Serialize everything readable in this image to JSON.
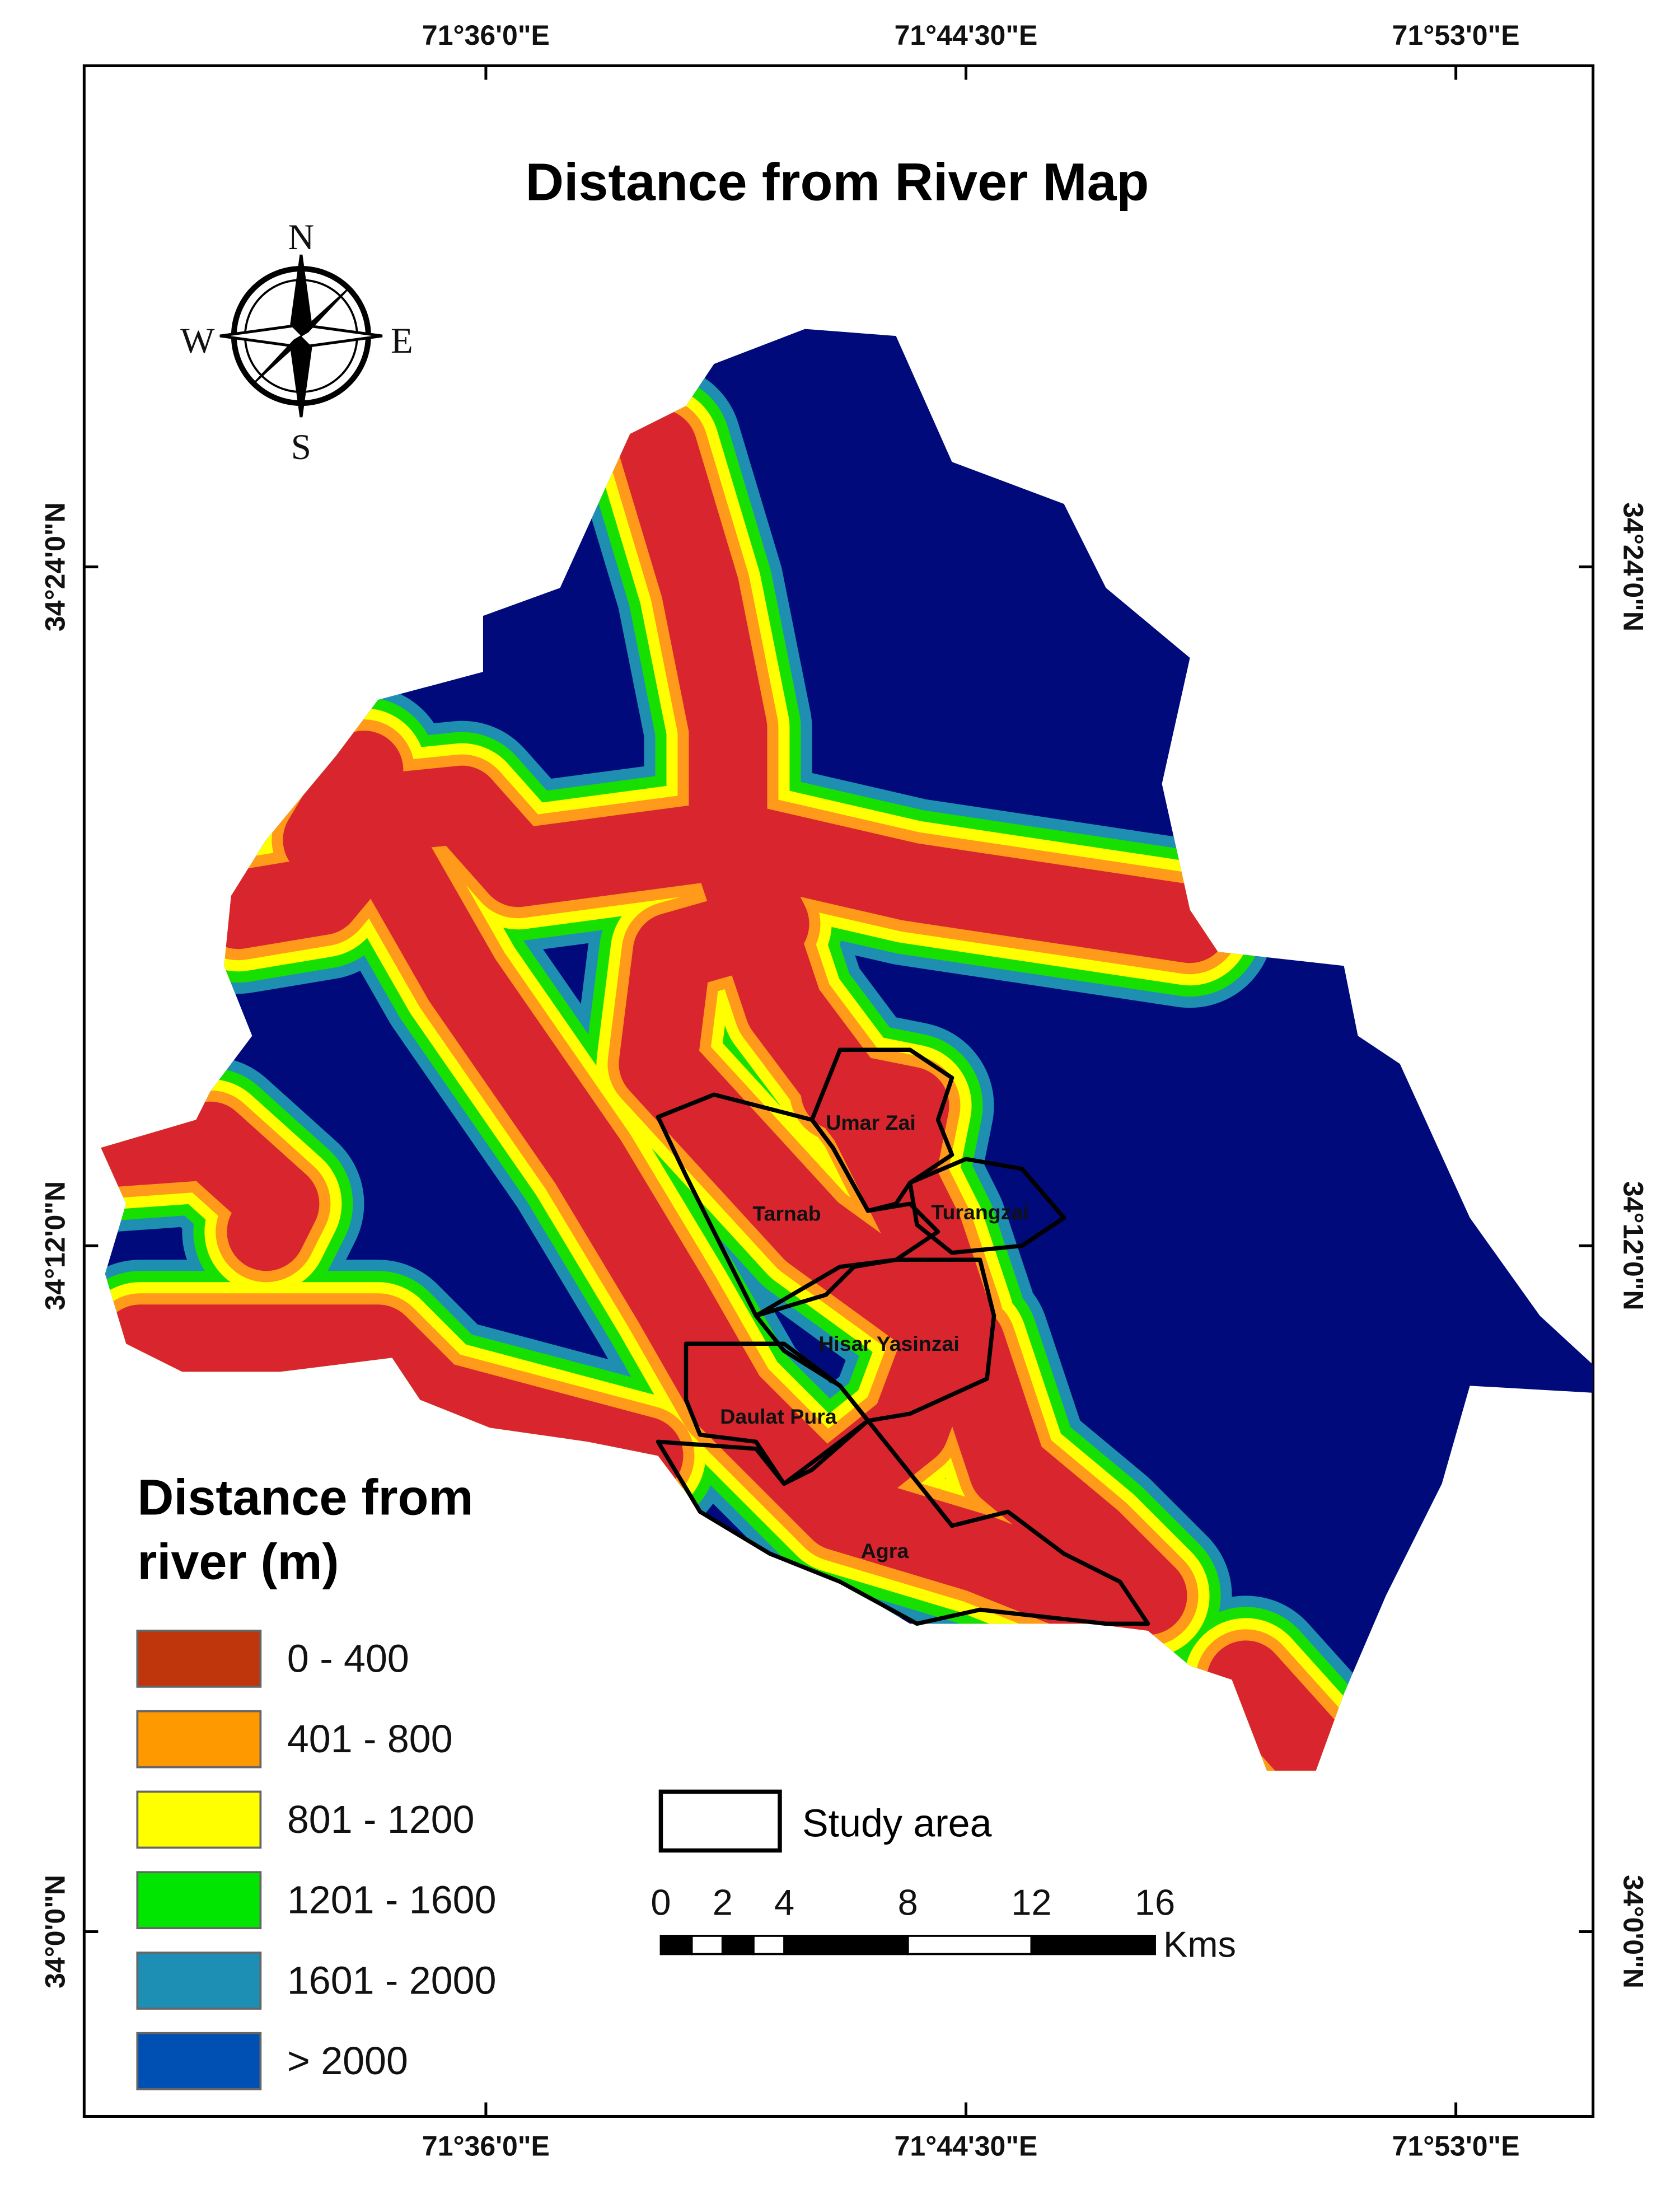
{
  "title": "Distance from River Map",
  "coordinates": {
    "top": [
      "71°36'0\"E",
      "71°44'30\"E",
      "71°53'0\"E"
    ],
    "bottom": [
      "71°36'0\"E",
      "71°44'30\"E",
      "71°53'0\"E"
    ],
    "left": [
      "34°24'0\"N",
      "34°12'0\"N",
      "34°0'0\"N"
    ],
    "right": [
      "34°24'0\"N",
      "34°12'0\"N",
      "34°0'0\"N"
    ]
  },
  "compass": {
    "north": "N",
    "south": "S",
    "east": "E",
    "west": "W"
  },
  "legend": {
    "title_lines": [
      "Distance from",
      "river (m)"
    ],
    "items": [
      {
        "label": "0 - 400",
        "color": "#c0360c"
      },
      {
        "label": "401 - 800",
        "color": "#ff9900"
      },
      {
        "label": "801 - 1200",
        "color": "#ffff00"
      },
      {
        "label": "1201 - 1600",
        "color": "#00e600"
      },
      {
        "label": "1601 - 2000",
        "color": "#1e8fb4"
      },
      {
        "label": "> 2000",
        "color": "#0050b4"
      }
    ]
  },
  "study_area": {
    "label": "Study area",
    "places": [
      "Umar Zai",
      "Tarnab",
      "Turangzai",
      "Hisar Yasinzai",
      "Daulat Pura",
      "Agra"
    ]
  },
  "scale_bar": {
    "ticks": [
      0,
      2,
      4,
      8,
      12,
      16
    ],
    "unit": "Kms"
  }
}
